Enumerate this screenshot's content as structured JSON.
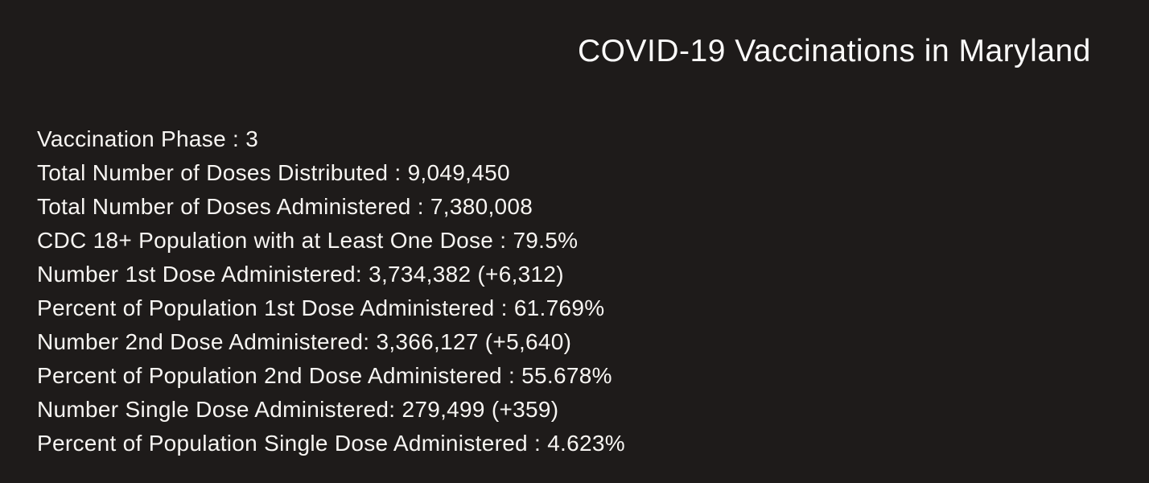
{
  "page": {
    "title": "COVID-19 Vaccinations in Maryland",
    "background_color": "#1e1b1a",
    "text_color": "#f7f5f2"
  },
  "stats": [
    {
      "label": "Vaccination Phase",
      "sep": " : ",
      "value": "3"
    },
    {
      "label": "Total Number of Doses Distributed",
      "sep": " : ",
      "value": "9,049,450"
    },
    {
      "label": "Total Number of Doses Administered",
      "sep": " : ",
      "value": "7,380,008"
    },
    {
      "label": "CDC 18+ Population with at Least One Dose",
      "sep": " : ",
      "value": "79.5%"
    },
    {
      "label": "Number 1st Dose Administered",
      "sep": ": ",
      "value": "3,734,382 (+6,312)"
    },
    {
      "label": "Percent of Population 1st Dose Administered",
      "sep": " : ",
      "value": "61.769%"
    },
    {
      "label": "Number 2nd Dose Administered",
      "sep": ": ",
      "value": "3,366,127 (+5,640)"
    },
    {
      "label": "Percent of Population 2nd Dose Administered",
      "sep": " : ",
      "value": "55.678%"
    },
    {
      "label": "Number Single Dose Administered",
      "sep": ": ",
      "value": "279,499 (+359)"
    },
    {
      "label": "Percent of Population Single Dose Administered",
      "sep": " : ",
      "value": "4.623%"
    }
  ]
}
